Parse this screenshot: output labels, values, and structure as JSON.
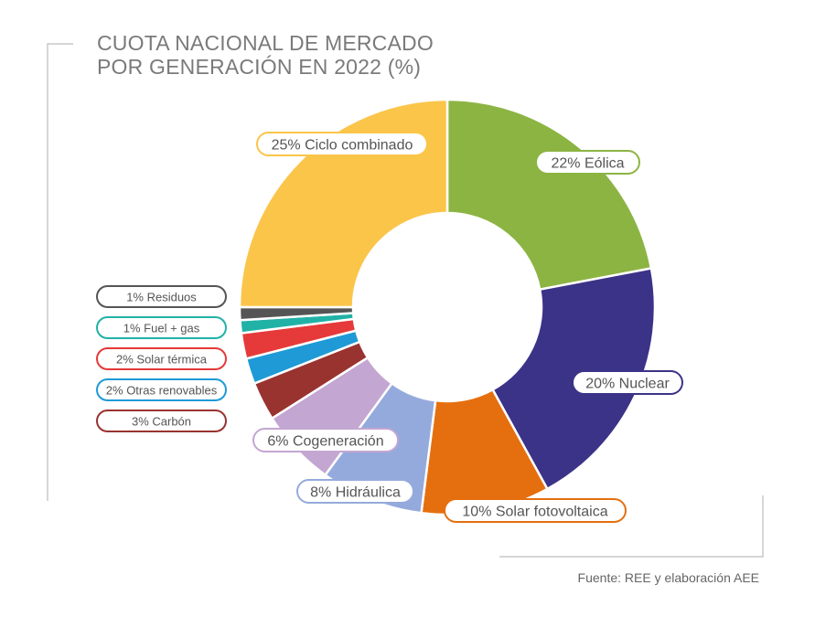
{
  "title": [
    "CUOTA NACIONAL DE MERCADO",
    "POR GENERACIÓN EN 2022 (%)"
  ],
  "source": "Fuente: REE y elaboración AEE",
  "chart_data": {
    "type": "pie",
    "style": "donut",
    "start": "top, clockwise",
    "slices": [
      {
        "name": "Eólica",
        "value": 22,
        "label": "22% Eólica",
        "color": "#8cb443"
      },
      {
        "name": "Nuclear",
        "value": 20,
        "label": "20% Nuclear",
        "color": "#3b3388"
      },
      {
        "name": "Solar fotovoltaica",
        "value": 10,
        "label": "10% Solar fotovoltaica",
        "color": "#e56f0e"
      },
      {
        "name": "Hidráulica",
        "value": 8,
        "label": "8% Hidráulica",
        "color": "#95aadc"
      },
      {
        "name": "Cogeneración",
        "value": 6,
        "label": "6% Cogeneración",
        "color": "#c3a6d2"
      },
      {
        "name": "Carbón",
        "value": 3,
        "label": "3% Carbón",
        "color": "#993330"
      },
      {
        "name": "Otras renovables",
        "value": 2,
        "label": "2% Otras renovables",
        "color": "#1f9ad6"
      },
      {
        "name": "Solar térmica",
        "value": 2,
        "label": "2% Solar térmica",
        "color": "#e53a39"
      },
      {
        "name": "Fuel + gas",
        "value": 1,
        "label": "1% Fuel + gas",
        "color": "#21b2a6"
      },
      {
        "name": "Residuos",
        "value": 1,
        "label": "1% Residuos",
        "color": "#555555"
      },
      {
        "name": "Ciclo combinado",
        "value": 25,
        "label": "25% Ciclo combinado",
        "color": "#fbc54a"
      }
    ]
  }
}
